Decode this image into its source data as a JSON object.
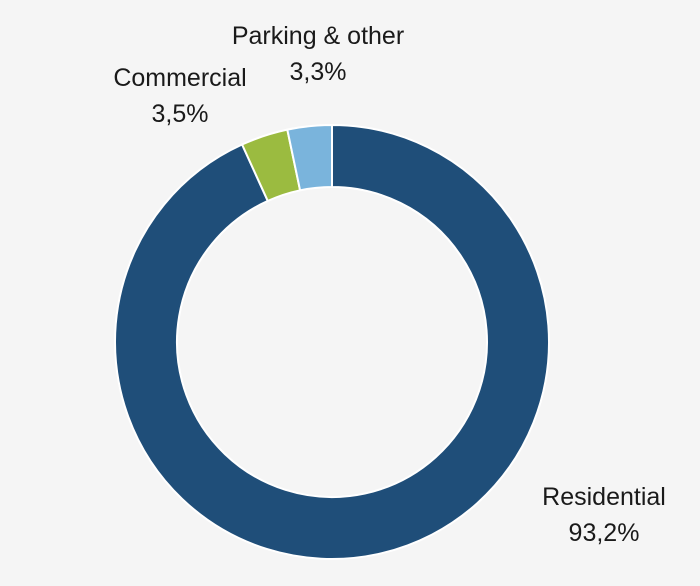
{
  "chart_data": {
    "type": "pie",
    "title": "",
    "categories": [
      "Residential",
      "Commercial",
      "Parking & other"
    ],
    "values": [
      93.2,
      3.5,
      3.3
    ],
    "value_labels": [
      "93,2%",
      "3,5%",
      "3,3%"
    ],
    "colors": [
      "#1f4e79",
      "#9bbb40",
      "#7ab4dc"
    ],
    "legend": "none",
    "start_angle_deg": 0,
    "direction": "clockwise"
  }
}
